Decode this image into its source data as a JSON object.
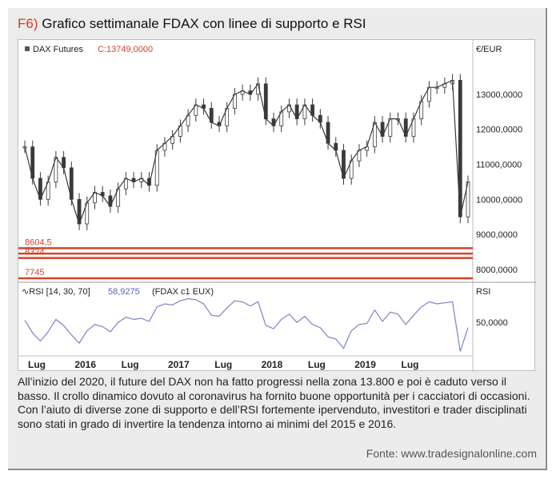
{
  "figure": {
    "number": "F6)",
    "title": "Grafico settimanale FDAX con linee di supporto e RSI",
    "caption": "All’inizio del 2020, il future del DAX non ha fatto progressi nella zona 13.800 e poi è caduto verso il basso. Il crollo dinamico dovuto al coronavirus ha fornito buone opportunità per i cacciatori di occasioni. Con l’aiuto di diverse zone di supporto e dell’RSI fortemente iper­venduto, investitori e trader disciplinati sono stati in grado di invertire la tendenza intorno ai minimi del 2015 e 2016.",
    "source": "Fonte: www.tradesignalonline.com"
  },
  "colors": {
    "price": "#3a3a3a",
    "support": "#d2452b",
    "rsi": "#7d84c4",
    "legend_value": "#d2452b",
    "rsi_value": "#5a62b0"
  },
  "chart_data": [
    {
      "type": "line",
      "subtype": "candlestick-weekly",
      "legend": {
        "name": "DAX Futures",
        "value_prefix": "C:",
        "value": "13749,0000"
      },
      "y_unit_label": "€/EUR",
      "ylim": [
        7700,
        14050
      ],
      "yticks": [
        {
          "value": 13000,
          "label": "13000,0000"
        },
        {
          "value": 12000,
          "label": "12000,0000"
        },
        {
          "value": 11000,
          "label": "11000,0000"
        },
        {
          "value": 10000,
          "label": "10000,0000"
        },
        {
          "value": 9000,
          "label": "9000,0000"
        },
        {
          "value": 8000,
          "label": "8000,0000"
        }
      ],
      "support_lines": [
        {
          "value": 8604.5,
          "label": "8604,5"
        },
        {
          "value": 8450,
          "label": ""
        },
        {
          "value": 8324,
          "label": "8324"
        },
        {
          "value": 7745,
          "label": "7745"
        }
      ],
      "x": [
        "2015-07",
        "2015-08",
        "2015-09",
        "2015-10",
        "2015-11",
        "2015-12",
        "2016-01",
        "2016-02",
        "2016-03",
        "2016-04",
        "2016-05",
        "2016-06",
        "2016-07",
        "2016-08",
        "2016-09",
        "2016-10",
        "2016-11",
        "2016-12",
        "2017-01",
        "2017-02",
        "2017-03",
        "2017-04",
        "2017-05",
        "2017-06",
        "2017-07",
        "2017-08",
        "2017-09",
        "2017-10",
        "2017-11",
        "2017-12",
        "2018-01",
        "2018-02",
        "2018-03",
        "2018-04",
        "2018-05",
        "2018-06",
        "2018-07",
        "2018-08",
        "2018-09",
        "2018-10",
        "2018-11",
        "2018-12",
        "2019-01",
        "2019-02",
        "2019-03",
        "2019-04",
        "2019-05",
        "2019-06",
        "2019-07",
        "2019-08",
        "2019-09",
        "2019-10",
        "2019-11",
        "2019-12",
        "2020-01",
        "2020-02",
        "2020-03",
        "2020-04"
      ],
      "values": [
        11500,
        10600,
        10000,
        10500,
        11200,
        10900,
        10000,
        9300,
        9900,
        10200,
        10100,
        9800,
        10300,
        10600,
        10500,
        10600,
        10400,
        11400,
        11600,
        11800,
        12100,
        12400,
        12700,
        12600,
        12200,
        12100,
        12600,
        13000,
        13100,
        13000,
        13300,
        12300,
        12100,
        12500,
        12700,
        12300,
        12700,
        12400,
        12200,
        11600,
        11400,
        10600,
        11100,
        11400,
        11500,
        12200,
        11800,
        12300,
        12300,
        11800,
        12300,
        12800,
        13200,
        13200,
        13300,
        13400,
        9500,
        10500
      ]
    },
    {
      "type": "line",
      "legend": {
        "name": "RSI [14, 30, 70]",
        "value": "58,9275",
        "source": "(FDAX c1 EUX)"
      },
      "y_unit_label": "RSI",
      "ylim": [
        20,
        85
      ],
      "yticks": [
        {
          "value": 50,
          "label": "50,0000"
        }
      ],
      "values": [
        52,
        40,
        32,
        41,
        53,
        47,
        38,
        30,
        42,
        48,
        46,
        41,
        50,
        55,
        53,
        54,
        51,
        65,
        68,
        67,
        71,
        73,
        72,
        68,
        57,
        56,
        64,
        71,
        70,
        66,
        70,
        47,
        44,
        53,
        58,
        50,
        56,
        48,
        45,
        36,
        34,
        25,
        42,
        48,
        49,
        62,
        51,
        60,
        58,
        48,
        57,
        65,
        70,
        68,
        69,
        70,
        22,
        45
      ]
    }
  ],
  "x_axis_labels": [
    {
      "pos": 0,
      "label": "Lug"
    },
    {
      "pos": 6,
      "label": "2016"
    },
    {
      "pos": 12,
      "label": "Lug"
    },
    {
      "pos": 18,
      "label": "2017"
    },
    {
      "pos": 24,
      "label": "Lug"
    },
    {
      "pos": 30,
      "label": "2018"
    },
    {
      "pos": 36,
      "label": "Lug"
    },
    {
      "pos": 42,
      "label": "2019"
    },
    {
      "pos": 48,
      "label": "Lug"
    }
  ]
}
